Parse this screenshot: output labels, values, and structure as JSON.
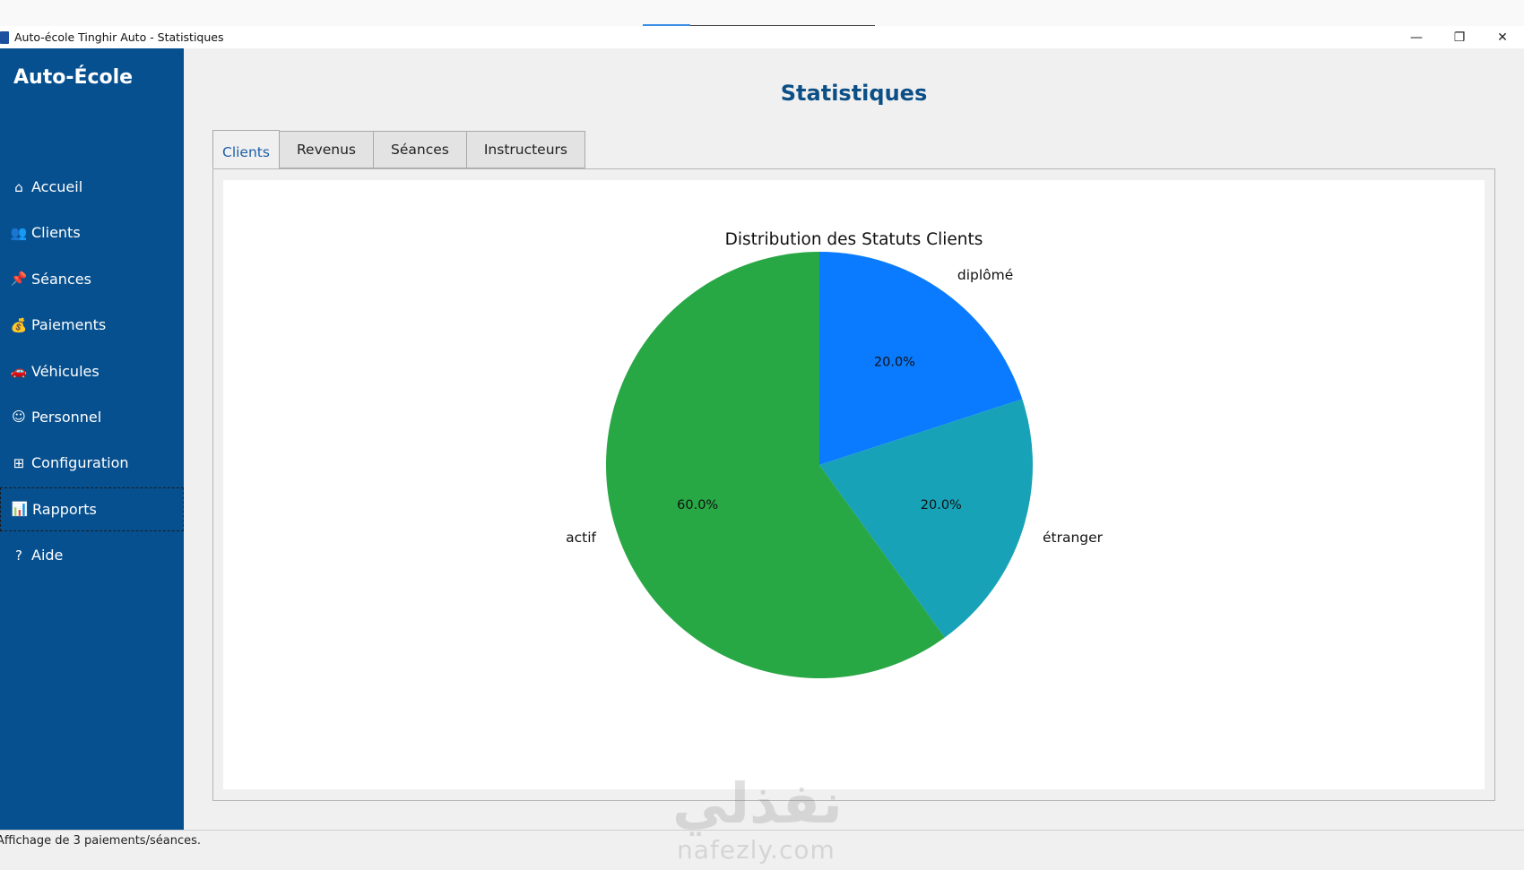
{
  "window": {
    "title": "Auto-école Tinghir Auto - Statistiques",
    "controls": {
      "minimize": "—",
      "restore": "❐",
      "close": "✕"
    }
  },
  "sidebar": {
    "brand": "Auto-École",
    "items": [
      {
        "label": "Accueil",
        "icon": "home-icon",
        "glyph": "⌂"
      },
      {
        "label": "Clients",
        "icon": "people-icon",
        "glyph": "👥"
      },
      {
        "label": "Séances",
        "icon": "pin-icon",
        "glyph": "📌"
      },
      {
        "label": "Paiements",
        "icon": "money-bag-icon",
        "glyph": "💰"
      },
      {
        "label": "Véhicules",
        "icon": "car-icon",
        "glyph": "🚗"
      },
      {
        "label": "Personnel",
        "icon": "face-icon",
        "glyph": "☺"
      },
      {
        "label": "Configuration",
        "icon": "settings-panel-icon",
        "glyph": "⊞"
      },
      {
        "label": "Rapports",
        "icon": "bar-chart-icon",
        "glyph": "📊",
        "active": true
      },
      {
        "label": "Aide",
        "icon": "question-icon",
        "glyph": "?"
      }
    ]
  },
  "main": {
    "title": "Statistiques",
    "tabs": [
      {
        "label": "Clients",
        "selected": true
      },
      {
        "label": "Revenus"
      },
      {
        "label": "Séances"
      },
      {
        "label": "Instructeurs"
      }
    ]
  },
  "chart_data": {
    "type": "pie",
    "title": "Distribution des Statuts Clients",
    "start_angle_deg": 90,
    "direction": "clockwise",
    "slices": [
      {
        "label": "diplômé",
        "value": 20,
        "pct_label": "20.0%",
        "color": "#0a7bff"
      },
      {
        "label": "étranger",
        "value": 20,
        "pct_label": "20.0%",
        "color": "#17a2b8"
      },
      {
        "label": "actif",
        "value": 60,
        "pct_label": "60.0%",
        "color": "#28a745"
      }
    ]
  },
  "statusbar": {
    "text": "Affichage de 3 paiements/séances."
  },
  "watermark": {
    "arabic": "نفذلي",
    "latin": "nafezly.com"
  }
}
